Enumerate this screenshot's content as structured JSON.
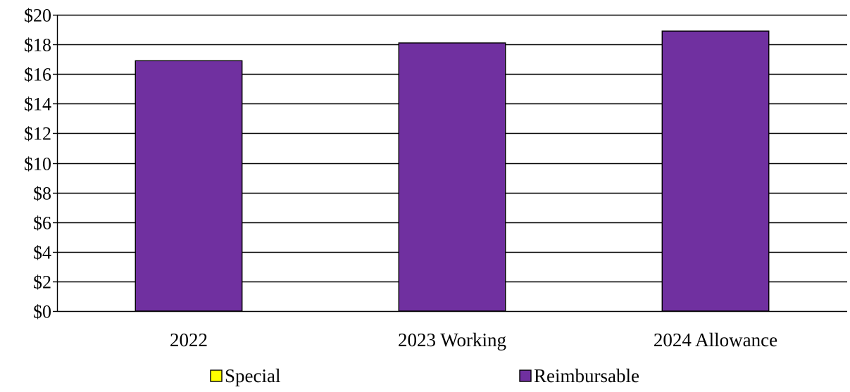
{
  "chart_data": {
    "type": "bar",
    "stacked": true,
    "categories": [
      "2022",
      "2023 Working",
      "2024 Allowance"
    ],
    "series": [
      {
        "name": "Special",
        "color": "#FFFF00",
        "values": [
          0,
          0,
          0
        ]
      },
      {
        "name": "Reimbursable",
        "color": "#7030A0",
        "values": [
          16.9,
          18.1,
          18.9
        ]
      }
    ],
    "ylim": [
      0,
      20
    ],
    "yticks": [
      0,
      2,
      4,
      6,
      8,
      10,
      12,
      14,
      16,
      18,
      20
    ],
    "ytick_labels": [
      "$0",
      "$2",
      "$4",
      "$6",
      "$8",
      "$10",
      "$12",
      "$14",
      "$16",
      "$18",
      "$20"
    ],
    "grid": true,
    "legend_position": "bottom",
    "title": "",
    "xlabel": "",
    "ylabel": ""
  }
}
